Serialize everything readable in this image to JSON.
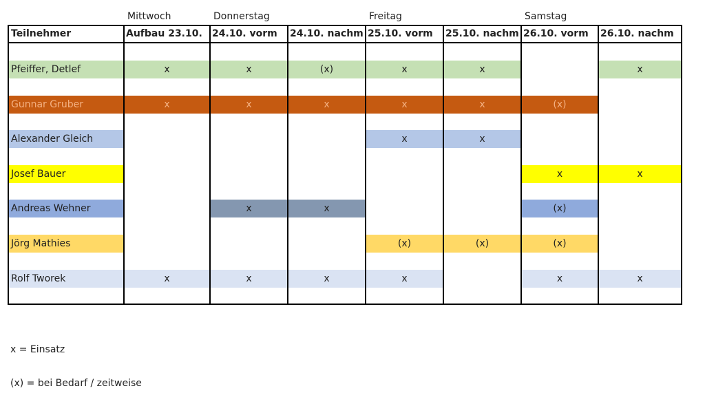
{
  "table": {
    "days": [
      "Mittwoch",
      "Donnerstag",
      null,
      "Freitag",
      null,
      "Samstag",
      null
    ],
    "header": "Teilnehmer",
    "columns": [
      "Aufbau 23.10.",
      "24.10. vorm",
      "24.10. nachm",
      "25.10. vorm",
      "25.10. nachm",
      "26.10. vorm",
      "26.10. nachm"
    ],
    "rows": [
      {
        "name": "Pfeiffer, Detlef",
        "color": "#c5e0b4",
        "text_color": "#222",
        "cells": [
          {
            "text": "x",
            "color": "#c5e0b4"
          },
          {
            "text": "x",
            "color": "#c5e0b4"
          },
          {
            "text": "(x)",
            "color": "#c5e0b4"
          },
          {
            "text": "x",
            "color": "#c5e0b4"
          },
          {
            "text": "x",
            "color": "#c5e0b4"
          },
          null,
          {
            "text": "x",
            "color": "#c5e0b4"
          }
        ]
      },
      {
        "name": "Gunnar Gruber",
        "color": "#c55a11",
        "text_color": "#f4b183",
        "cells": [
          {
            "text": "x",
            "color": "#c55a11"
          },
          {
            "text": "x",
            "color": "#c55a11"
          },
          {
            "text": "x",
            "color": "#c55a11"
          },
          {
            "text": "x",
            "color": "#c55a11"
          },
          {
            "text": "x",
            "color": "#c55a11"
          },
          {
            "text": "(x)",
            "color": "#c55a11"
          },
          null
        ]
      },
      {
        "name": "Alexander Gleich",
        "color": "#b4c7e7",
        "text_color": "#222",
        "cells": [
          null,
          null,
          null,
          {
            "text": "x",
            "color": "#b4c7e7"
          },
          {
            "text": "x",
            "color": "#b4c7e7"
          },
          null,
          null
        ]
      },
      {
        "name": "Josef Bauer",
        "color": "#ffff00",
        "text_color": "#222",
        "cells": [
          null,
          null,
          null,
          null,
          null,
          {
            "text": "x",
            "color": "#ffff00"
          },
          {
            "text": "x",
            "color": "#ffff00"
          }
        ]
      },
      {
        "name": "Andreas Wehner",
        "color": "#8faadc",
        "text_color": "#222",
        "cells": [
          null,
          {
            "text": "x",
            "color": "#8497b0"
          },
          {
            "text": "x",
            "color": "#8497b0"
          },
          null,
          null,
          {
            "text": "(x)",
            "color": "#8faadc"
          },
          null
        ]
      },
      {
        "name": "Jörg Mathies",
        "color": "#ffd966",
        "text_color": "#222",
        "cells": [
          null,
          null,
          null,
          {
            "text": "(x)",
            "color": "#ffd966"
          },
          {
            "text": "(x)",
            "color": "#ffd966"
          },
          {
            "text": "(x)",
            "color": "#ffd966"
          },
          null
        ]
      },
      {
        "name": "Rolf Tworek",
        "color": "#dae3f3",
        "text_color": "#222",
        "cells": [
          {
            "text": "x",
            "color": "#dae3f3"
          },
          {
            "text": "x",
            "color": "#dae3f3"
          },
          {
            "text": "x",
            "color": "#dae3f3"
          },
          {
            "text": "x",
            "color": "#dae3f3"
          },
          null,
          {
            "text": "x",
            "color": "#dae3f3"
          },
          {
            "text": "x",
            "color": "#dae3f3"
          }
        ]
      }
    ]
  },
  "legend": [
    "x = Einsatz",
    "(x) = bei Bedarf / zeitweise"
  ]
}
